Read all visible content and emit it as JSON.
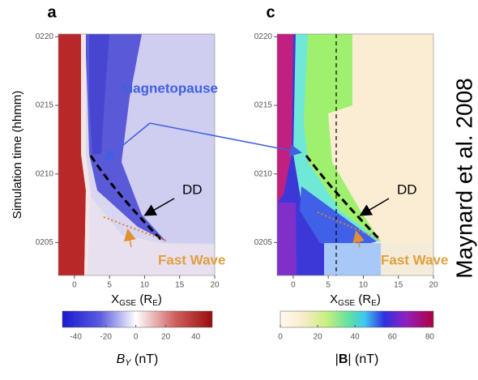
{
  "chart_data": [
    {
      "type": "heatmap",
      "panel_label": "a",
      "xlabel": [
        "X",
        "GSE",
        " (R",
        "E",
        ")"
      ],
      "ylabel": "Simulation time (hhmm)",
      "xlim": [
        -2.3,
        20
      ],
      "xticks": [
        0,
        5,
        10,
        15,
        20
      ],
      "ylim": [
        202.6,
        220.2
      ],
      "yticks": [
        {
          "value": 205,
          "label": "0205"
        },
        {
          "value": 210,
          "label": "0210"
        },
        {
          "value": 215,
          "label": "0215"
        },
        {
          "value": 220,
          "label": "0220"
        }
      ],
      "colorbar": {
        "lim": [
          -49,
          51
        ],
        "ticks": [
          -40,
          -20,
          0,
          20,
          40
        ],
        "label": [
          "B",
          "Y",
          " (nT)"
        ]
      },
      "annotations": [
        "Magnetopause",
        "DD",
        "Fast Wave"
      ]
    },
    {
      "type": "heatmap",
      "panel_label": "c",
      "xlabel": [
        "X",
        "GSE",
        " (R",
        "E",
        ")"
      ],
      "xlim": [
        -2.3,
        20
      ],
      "xticks": [
        0,
        5,
        10,
        15,
        20
      ],
      "ylim": [
        202.6,
        220.2
      ],
      "yticks": [
        {
          "value": 205,
          "label": "0205"
        },
        {
          "value": 210,
          "label": "0210"
        },
        {
          "value": 215,
          "label": "0215"
        },
        {
          "value": 220,
          "label": "0220"
        }
      ],
      "colorbar": {
        "lim": [
          0,
          82
        ],
        "ticks": [
          0,
          20,
          40,
          60,
          80
        ],
        "label": [
          "|",
          "B",
          "| (nT)"
        ]
      },
      "annotations": [
        "DD",
        "Fast Wave"
      ]
    }
  ],
  "citation": "Maynard et al. 2008"
}
